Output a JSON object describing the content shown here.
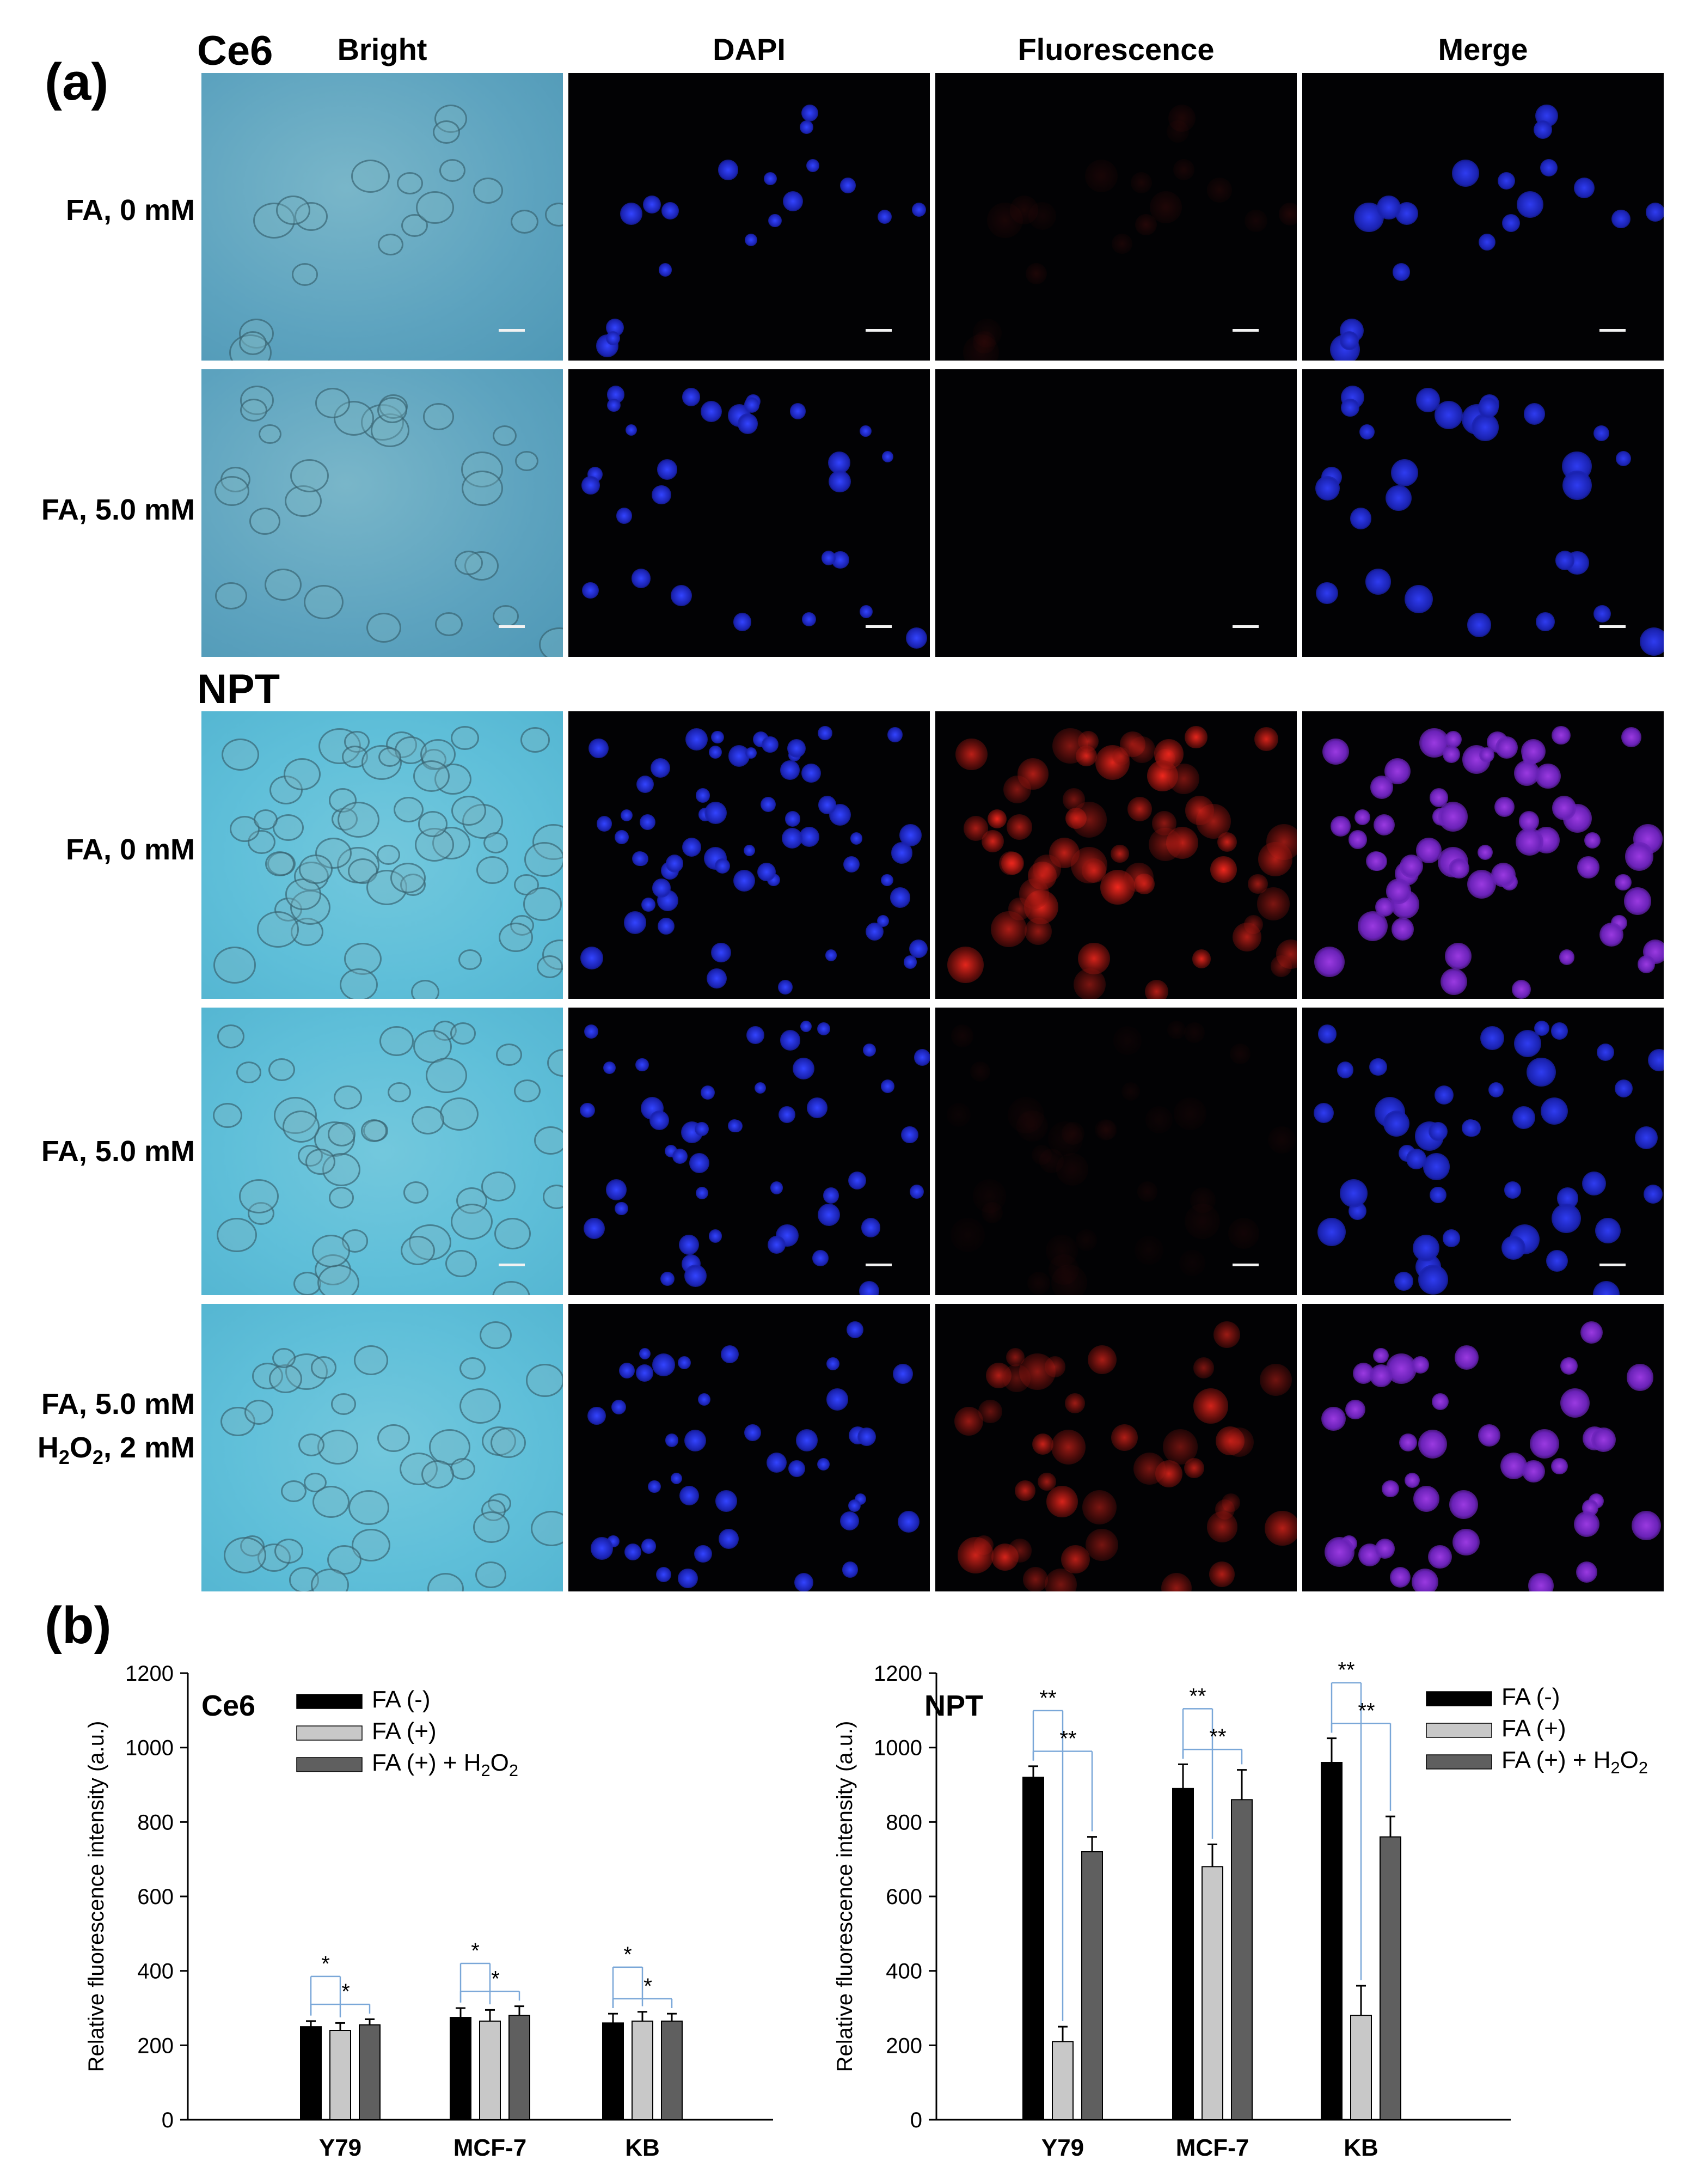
{
  "panel_a": {
    "letter": "(a)",
    "columns": [
      "Bright",
      "DAPI",
      "Fluorescence",
      "Merge"
    ],
    "groups": [
      {
        "title": "Ce6",
        "rows": [
          {
            "label": "FA, 0 mM"
          },
          {
            "label": "FA, 5.0 mM"
          }
        ]
      },
      {
        "title": "NPT",
        "rows": [
          {
            "label": "FA, 0 mM"
          },
          {
            "label": "FA, 5.0 mM"
          },
          {
            "label": "FA, 5.0 mM",
            "label2": "H2O2, 2 mM"
          }
        ]
      }
    ]
  },
  "panel_b": {
    "letter": "(b)"
  },
  "colors": {
    "fa_minus": "#000000",
    "fa_plus": "#c8c8c8",
    "fa_plus_h2o2": "#5f5f5f",
    "significance": "#7aa7d8",
    "dapi": "#1a2cd6",
    "fluorescence": "#d8241a",
    "merge": "#8a2bd0"
  },
  "chart_data": [
    {
      "type": "bar",
      "title": "Ce6",
      "ylabel": "Relative fluorescence intensity (a.u.)",
      "xlabel": "",
      "ylim": [
        0,
        1200
      ],
      "yticks": [
        0,
        200,
        400,
        600,
        800,
        1000,
        1200
      ],
      "categories": [
        "Y79",
        "MCF-7",
        "KB"
      ],
      "legend_position": "top-center",
      "series": [
        {
          "name": "FA (-)",
          "values": [
            250,
            275,
            260
          ],
          "errors": [
            15,
            25,
            25
          ]
        },
        {
          "name": "FA (+)",
          "values": [
            240,
            265,
            265
          ],
          "errors": [
            20,
            30,
            25
          ]
        },
        {
          "name": "FA (+) + H2O2",
          "values": [
            255,
            280,
            265
          ],
          "errors": [
            15,
            25,
            20
          ]
        }
      ],
      "significance": [
        {
          "category": 0,
          "pair": [
            0,
            1
          ],
          "label": "*"
        },
        {
          "category": 0,
          "pair": [
            0,
            2
          ],
          "label": "*"
        },
        {
          "category": 1,
          "pair": [
            0,
            1
          ],
          "label": "*"
        },
        {
          "category": 1,
          "pair": [
            0,
            2
          ],
          "label": "*"
        },
        {
          "category": 2,
          "pair": [
            0,
            1
          ],
          "label": "*"
        },
        {
          "category": 2,
          "pair": [
            0,
            2
          ],
          "label": "*"
        }
      ]
    },
    {
      "type": "bar",
      "title": "NPT",
      "ylabel": "Relative fluorescence intensity (a.u.)",
      "xlabel": "",
      "ylim": [
        0,
        1200
      ],
      "yticks": [
        0,
        200,
        400,
        600,
        800,
        1000,
        1200
      ],
      "categories": [
        "Y79",
        "MCF-7",
        "KB"
      ],
      "legend_position": "top-right",
      "series": [
        {
          "name": "FA (-)",
          "values": [
            920,
            890,
            960
          ],
          "errors": [
            30,
            65,
            65
          ]
        },
        {
          "name": "FA (+)",
          "values": [
            210,
            680,
            280
          ],
          "errors": [
            40,
            60,
            80
          ]
        },
        {
          "name": "FA (+) + H2O2",
          "values": [
            720,
            860,
            760
          ],
          "errors": [
            40,
            80,
            55
          ]
        }
      ],
      "significance": [
        {
          "category": 0,
          "pair": [
            0,
            1
          ],
          "label": "**"
        },
        {
          "category": 0,
          "pair": [
            0,
            2
          ],
          "label": "**"
        },
        {
          "category": 1,
          "pair": [
            0,
            1
          ],
          "label": "**"
        },
        {
          "category": 1,
          "pair": [
            0,
            2
          ],
          "label": "**"
        },
        {
          "category": 2,
          "pair": [
            0,
            1
          ],
          "label": "**"
        },
        {
          "category": 2,
          "pair": [
            0,
            2
          ],
          "label": "**"
        }
      ]
    }
  ]
}
